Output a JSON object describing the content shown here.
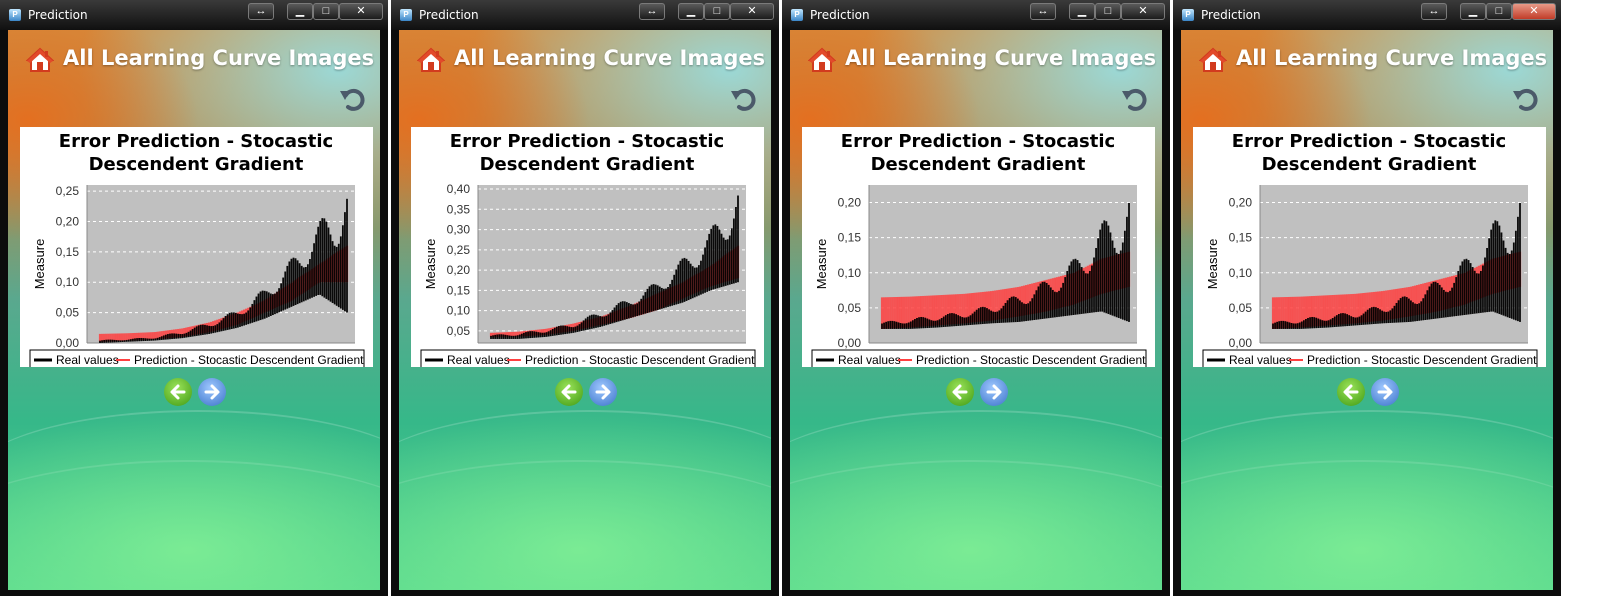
{
  "windows": [
    {
      "title": "Prediction",
      "header_title": "All Learning Curve Images",
      "chart_data": {
        "type": "line",
        "title": "Error Prediction - Stocastic Descendent Gradient",
        "ylabel": "Measure",
        "ylim": [
          0,
          0.26
        ],
        "yticks": [
          "0,00",
          "0,05",
          "0,10",
          "0,15",
          "0,20",
          "0,25"
        ],
        "ytick_values": [
          0,
          0.05,
          0.1,
          0.15,
          0.2,
          0.25
        ],
        "series": [
          {
            "name": "Real values",
            "color": "#000000",
            "band_low": [
              0.0,
              0.002,
              0.004,
              0.008,
              0.015,
              0.025,
              0.04,
              0.06,
              0.08,
              0.05
            ],
            "band_high": [
              0.005,
              0.007,
              0.01,
              0.02,
              0.035,
              0.055,
              0.09,
              0.14,
              0.2,
              0.26
            ]
          },
          {
            "name": "Prediction - Stocastic Descendent Gradient",
            "color": "#ff4040",
            "band_low": [
              0.002,
              0.004,
              0.006,
              0.01,
              0.018,
              0.03,
              0.05,
              0.07,
              0.1,
              0.1
            ],
            "band_high": [
              0.015,
              0.016,
              0.018,
              0.024,
              0.034,
              0.05,
              0.07,
              0.1,
              0.13,
              0.16
            ]
          }
        ],
        "legend": "bottom"
      }
    },
    {
      "title": "Prediction",
      "header_title": "All Learning Curve Images",
      "chart_data": {
        "type": "line",
        "title": "Error Prediction - Stocastic Descendent Gradient",
        "ylabel": "Measure",
        "ylim": [
          0.02,
          0.41
        ],
        "yticks": [
          "0,05",
          "0,10",
          "0,15",
          "0,20",
          "0,25",
          "0,30",
          "0,35",
          "0,40"
        ],
        "ytick_values": [
          0.05,
          0.1,
          0.15,
          0.2,
          0.25,
          0.3,
          0.35,
          0.4
        ],
        "series": [
          {
            "name": "Real values",
            "color": "#000000",
            "band_low": [
              0.03,
              0.03,
              0.035,
              0.045,
              0.06,
              0.08,
              0.1,
              0.12,
              0.15,
              0.17
            ],
            "band_high": [
              0.04,
              0.045,
              0.055,
              0.07,
              0.1,
              0.13,
              0.17,
              0.23,
              0.3,
              0.41
            ]
          },
          {
            "name": "Prediction - Stocastic Descendent Gradient",
            "color": "#ff4040",
            "band_low": [
              0.035,
              0.036,
              0.04,
              0.05,
              0.065,
              0.08,
              0.1,
              0.13,
              0.16,
              0.18
            ],
            "band_high": [
              0.045,
              0.048,
              0.055,
              0.068,
              0.085,
              0.11,
              0.14,
              0.17,
              0.21,
              0.26
            ]
          }
        ],
        "legend": "bottom"
      }
    },
    {
      "title": "Prediction",
      "header_title": "All Learning Curve Images",
      "chart_data": {
        "type": "line",
        "title": "Error Prediction - Stocastic Descendent Gradient",
        "ylabel": "Measure",
        "ylim": [
          0,
          0.225
        ],
        "yticks": [
          "0,00",
          "0,05",
          "0,10",
          "0,15",
          "0,20"
        ],
        "ytick_values": [
          0,
          0.05,
          0.1,
          0.15,
          0.2
        ],
        "series": [
          {
            "name": "Real values",
            "color": "#000000",
            "band_low": [
              0.02,
              0.02,
              0.022,
              0.025,
              0.028,
              0.03,
              0.035,
              0.04,
              0.045,
              0.03
            ],
            "band_high": [
              0.03,
              0.035,
              0.04,
              0.045,
              0.055,
              0.07,
              0.09,
              0.12,
              0.17,
              0.22
            ]
          },
          {
            "name": "Prediction - Stocastic Descendent Gradient",
            "color": "#ff4040",
            "band_low": [
              0.02,
              0.022,
              0.025,
              0.028,
              0.032,
              0.038,
              0.045,
              0.055,
              0.07,
              0.08
            ],
            "band_high": [
              0.065,
              0.066,
              0.068,
              0.07,
              0.074,
              0.08,
              0.09,
              0.1,
              0.12,
              0.13
            ]
          }
        ],
        "legend": "bottom"
      }
    },
    {
      "title": "Prediction",
      "header_title": "All Learning Curve Images",
      "chart_data": {
        "type": "line",
        "title": "Error Prediction - Stocastic Descendent Gradient",
        "ylabel": "Measure",
        "ylim": [
          0,
          0.225
        ],
        "yticks": [
          "0,00",
          "0,05",
          "0,10",
          "0,15",
          "0,20"
        ],
        "ytick_values": [
          0,
          0.05,
          0.1,
          0.15,
          0.2
        ],
        "series": [
          {
            "name": "Real values",
            "color": "#000000",
            "band_low": [
              0.02,
              0.02,
              0.022,
              0.025,
              0.028,
              0.03,
              0.035,
              0.04,
              0.045,
              0.03
            ],
            "band_high": [
              0.03,
              0.035,
              0.04,
              0.045,
              0.055,
              0.07,
              0.09,
              0.12,
              0.17,
              0.22
            ]
          },
          {
            "name": "Prediction - Stocastic Descendent Gradient",
            "color": "#ff4040",
            "band_low": [
              0.02,
              0.022,
              0.025,
              0.028,
              0.032,
              0.038,
              0.045,
              0.055,
              0.07,
              0.08
            ],
            "band_high": [
              0.065,
              0.066,
              0.068,
              0.07,
              0.074,
              0.08,
              0.09,
              0.1,
              0.12,
              0.13
            ]
          }
        ],
        "legend": "bottom"
      }
    }
  ],
  "controls": {
    "swap_glyph": "↔",
    "min_glyph": "▁",
    "max_glyph": "□",
    "close_glyph": "✕",
    "app_icon_glyph": "P"
  },
  "icons": {
    "home": "home-icon",
    "undo": "undo-icon",
    "prev": "arrow-left-icon",
    "next": "arrow-right-icon"
  },
  "colors": {
    "prev_button": "#4fa81d",
    "next_button": "#4a84d6",
    "plot_bg": "#c0c0c0",
    "prediction": "#ff4040",
    "real": "#000000"
  }
}
